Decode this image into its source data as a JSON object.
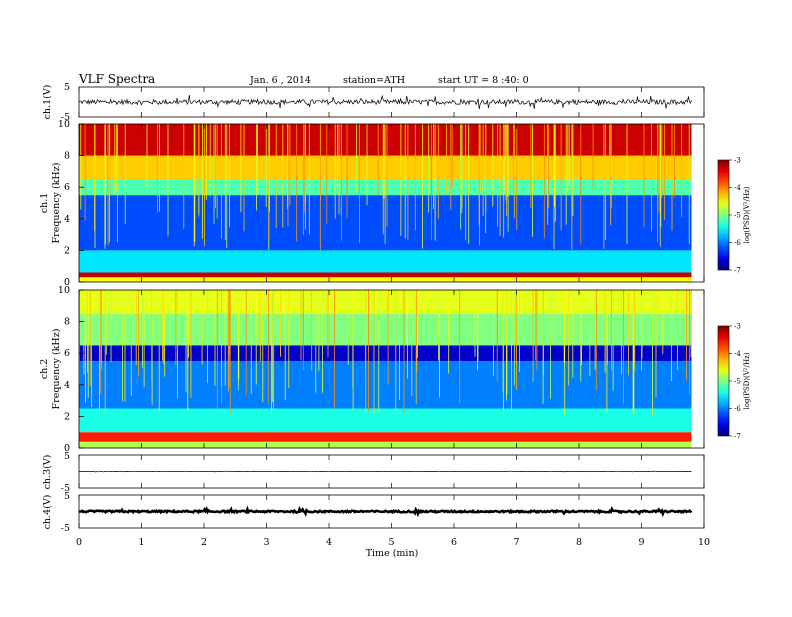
{
  "header": {
    "title": "VLF  Spectra",
    "date": "Jan. 6 , 2014",
    "station": "station=ATH",
    "start": "start  UT  =   8 :40: 0"
  },
  "chart_data": [
    {
      "type": "line",
      "name": "ch1-waveform",
      "ylabel": "ch.1(V)",
      "ylim": [
        -5,
        5
      ],
      "yticks": [
        "5",
        "-5"
      ],
      "xlim": [
        0,
        10
      ],
      "x_data_end": 9.8,
      "baseline": 0,
      "amplitude": 0.8
    },
    {
      "type": "heatmap",
      "name": "ch1-spectrogram",
      "channel_label": "ch.1",
      "ylabel": "Frequency  (kHz)",
      "ylim": [
        0,
        10
      ],
      "yticks": [
        "0",
        "2",
        "4",
        "6",
        "8",
        "10"
      ],
      "xlim": [
        0,
        9.8
      ],
      "colorbar": {
        "label": "log(PSD)(V²/Hz)",
        "ticks": [
          "-3",
          "-4",
          "-5",
          "-6",
          "-7"
        ],
        "range": [
          -7,
          -3
        ]
      },
      "levels": [
        {
          "freq": [
            0.0,
            0.3
          ],
          "logpsd": -4.5
        },
        {
          "freq": [
            0.3,
            0.6
          ],
          "logpsd": -3.3
        },
        {
          "freq": [
            0.6,
            2.0
          ],
          "logpsd": -5.6
        },
        {
          "freq": [
            2.0,
            5.5
          ],
          "logpsd": -6.2
        },
        {
          "freq": [
            5.5,
            6.5
          ],
          "logpsd": -5.2
        },
        {
          "freq": [
            6.5,
            8.0
          ],
          "logpsd": -4.3
        },
        {
          "freq": [
            8.0,
            10.0
          ],
          "logpsd": -3.3
        }
      ]
    },
    {
      "type": "heatmap",
      "name": "ch2-spectrogram",
      "channel_label": "ch.2",
      "ylabel": "Frequency  (kHz)",
      "ylim": [
        0,
        10
      ],
      "yticks": [
        "0",
        "2",
        "4",
        "6",
        "8",
        "10"
      ],
      "xlim": [
        0,
        9.8
      ],
      "colorbar": {
        "label": "log(PSD)(V²/Hz)",
        "ticks": [
          "-3",
          "-4",
          "-5",
          "-6",
          "-7"
        ],
        "range": [
          -7,
          -3
        ]
      },
      "levels": [
        {
          "freq": [
            0.0,
            0.4
          ],
          "logpsd": -4.8
        },
        {
          "freq": [
            0.4,
            1.0
          ],
          "logpsd": -3.6
        },
        {
          "freq": [
            1.0,
            2.5
          ],
          "logpsd": -5.4
        },
        {
          "freq": [
            2.5,
            5.5
          ],
          "logpsd": -6.0
        },
        {
          "freq": [
            5.5,
            6.5
          ],
          "logpsd": -6.7
        },
        {
          "freq": [
            6.5,
            8.5
          ],
          "logpsd": -5.0
        },
        {
          "freq": [
            8.5,
            10.0
          ],
          "logpsd": -4.6
        }
      ]
    },
    {
      "type": "line",
      "name": "ch3-waveform",
      "ylabel": "ch.3(V)",
      "ylim": [
        -5,
        5
      ],
      "yticks": [
        "5",
        "-5"
      ],
      "xlim": [
        0,
        10
      ],
      "x_data_end": 9.8,
      "baseline": 0,
      "amplitude": 0.05
    },
    {
      "type": "line",
      "name": "ch4-waveform",
      "ylabel": "ch.4(V)",
      "ylim": [
        -5,
        5
      ],
      "yticks": [
        "5",
        "-5"
      ],
      "xlim": [
        0,
        10
      ],
      "x_data_end": 9.8,
      "baseline": 0,
      "amplitude": 0.25,
      "xlabel": "Time  (min)",
      "xticks": [
        "0",
        "1",
        "2",
        "3",
        "4",
        "5",
        "6",
        "7",
        "8",
        "9",
        "10"
      ]
    }
  ]
}
